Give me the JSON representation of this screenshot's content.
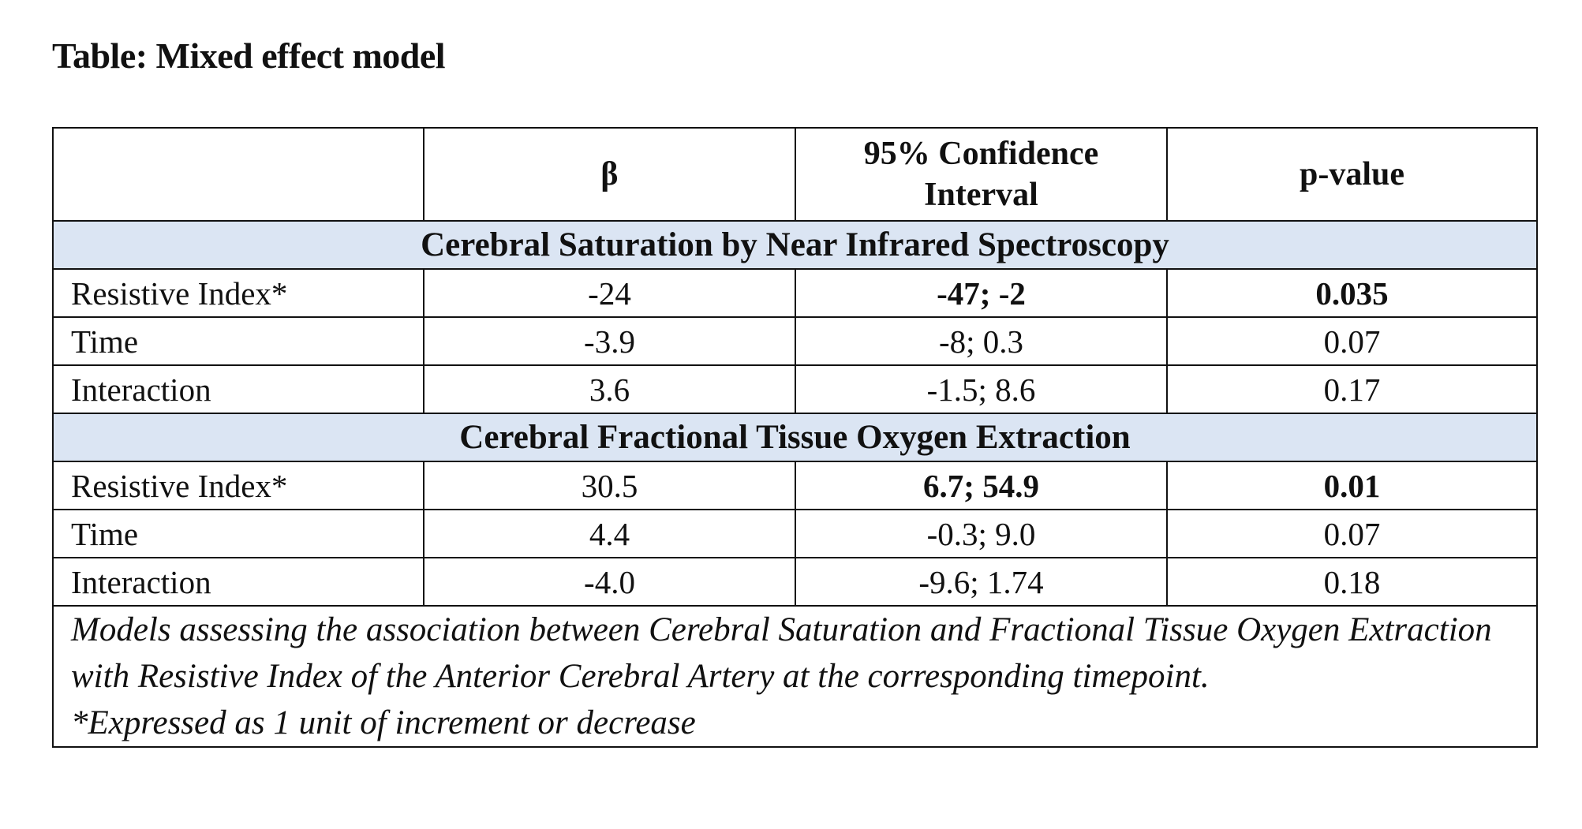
{
  "title": "Table: Mixed effect model",
  "table": {
    "headers": [
      "",
      "β",
      "95% Confidence Interval",
      "p-value"
    ],
    "sections": [
      {
        "title": "Cerebral Saturation by Near Infrared Spectroscopy",
        "rows": [
          {
            "label": "Resistive Index*",
            "beta": "-24",
            "ci": "-47; -2",
            "p": "0.035",
            "ci_bold": true,
            "p_bold": true
          },
          {
            "label": "Time",
            "beta": "-3.9",
            "ci": "-8; 0.3",
            "p": "0.07",
            "ci_bold": false,
            "p_bold": false
          },
          {
            "label": "Interaction",
            "beta": "3.6",
            "ci": "-1.5; 8.6",
            "p": "0.17",
            "ci_bold": false,
            "p_bold": false
          }
        ]
      },
      {
        "title": "Cerebral Fractional Tissue Oxygen Extraction",
        "rows": [
          {
            "label": "Resistive Index*",
            "beta": "30.5",
            "ci": "6.7; 54.9",
            "p": "0.01",
            "ci_bold": true,
            "p_bold": true
          },
          {
            "label": "Time",
            "beta": "4.4",
            "ci": "-0.3; 9.0",
            "p": "0.07",
            "ci_bold": false,
            "p_bold": false
          },
          {
            "label": "Interaction",
            "beta": "-4.0",
            "ci": "-9.6; 1.74",
            "p": "0.18",
            "ci_bold": false,
            "p_bold": false
          }
        ]
      }
    ],
    "note": "Models assessing the association between Cerebral Saturation and Fractional Tissue Oxygen Extraction with Resistive Index of the Anterior Cerebral Artery at the corresponding timepoint.",
    "footnote": "*Expressed as 1 unit of increment or decrease"
  },
  "colors": {
    "section_background": "#dbe5f3",
    "border": "#111111"
  }
}
